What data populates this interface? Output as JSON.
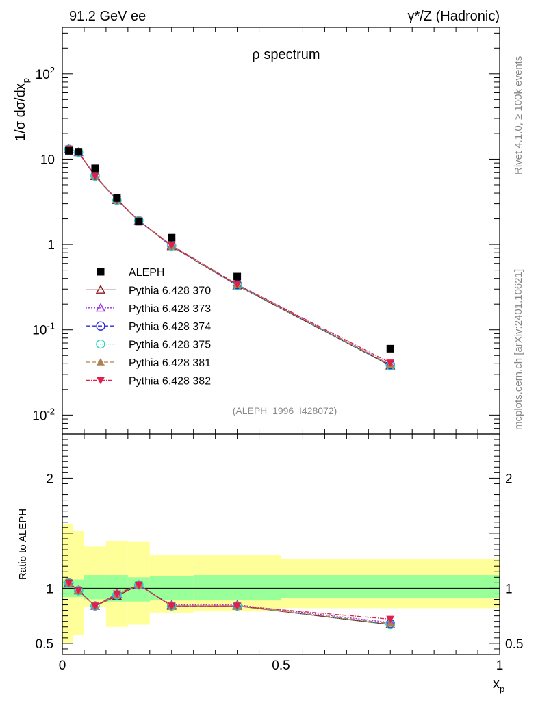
{
  "header": {
    "left": "91.2 GeV ee",
    "right": "γ*/Z (Hadronic)"
  },
  "side_text": {
    "rivet": "Rivet 4.1.0, ≥ 100k events",
    "source": "mcplots.cern.ch [arXiv:2401.10621]"
  },
  "colors": {
    "data": "#000000",
    "p370": "#8b1a1a",
    "p373": "#9a30e0",
    "p374": "#2a2ae0",
    "p375": "#22d4c0",
    "p381": "#b08050",
    "p382": "#e0204a",
    "band_inner": "#99ff99",
    "band_outer": "#ffff99"
  },
  "chart_data": {
    "type": "line",
    "title": "ρ spectrum",
    "watermark": "(ALEPH_1996_I428072)",
    "xlabel": "x",
    "xlabel_sub": "p",
    "ylabel_main": "1/σ  dσ/dx",
    "ylabel_sub": "p",
    "ratio_ylabel": "Ratio to ALEPH",
    "xlim": [
      0,
      1
    ],
    "ylim_main": [
      0.006,
      350
    ],
    "ylim_ratio": [
      0.4,
      2.4
    ],
    "x_ticks": [
      "0",
      "0.5",
      "1"
    ],
    "y_ticks_main": [
      "10^-2",
      "10^-1",
      "1",
      "10",
      "10^2"
    ],
    "y_ticks_ratio": [
      "0.5",
      "1",
      "2"
    ],
    "x": [
      0.015,
      0.037,
      0.075,
      0.125,
      0.175,
      0.25,
      0.4,
      0.75
    ],
    "bins": [
      [
        0,
        0.025
      ],
      [
        0.025,
        0.05
      ],
      [
        0.05,
        0.1
      ],
      [
        0.1,
        0.15
      ],
      [
        0.15,
        0.2
      ],
      [
        0.2,
        0.3
      ],
      [
        0.3,
        0.5
      ],
      [
        0.5,
        1.0
      ]
    ],
    "data": {
      "name": "ALEPH",
      "values": [
        12.5,
        12.2,
        7.8,
        3.5,
        1.85,
        1.2,
        0.42,
        0.06
      ]
    },
    "series": [
      {
        "name": "Pythia 6.428 370",
        "key": "p370",
        "marker": "triangle-open",
        "dash": "",
        "values": [
          13.0,
          12.0,
          6.3,
          3.3,
          1.9,
          0.95,
          0.33,
          0.038
        ],
        "ratio": [
          1.05,
          0.98,
          0.84,
          0.93,
          1.03,
          0.84,
          0.84,
          0.67
        ]
      },
      {
        "name": "Pythia 6.428 373",
        "key": "p373",
        "marker": "triangle-open",
        "dash": "2,2",
        "values": [
          13.1,
          12.0,
          6.4,
          3.35,
          1.9,
          0.97,
          0.34,
          0.039
        ],
        "ratio": [
          1.05,
          0.98,
          0.84,
          0.95,
          1.03,
          0.85,
          0.85,
          0.69
        ]
      },
      {
        "name": "Pythia 6.428 374",
        "key": "p374",
        "marker": "circle-open",
        "dash": "6,3",
        "values": [
          13.0,
          12.0,
          6.4,
          3.3,
          1.9,
          0.96,
          0.34,
          0.039
        ],
        "ratio": [
          1.05,
          0.98,
          0.84,
          0.94,
          1.03,
          0.84,
          0.84,
          0.68
        ]
      },
      {
        "name": "Pythia 6.428 375",
        "key": "p375",
        "marker": "circle-open",
        "dash": "1,2",
        "values": [
          13.0,
          12.0,
          6.3,
          3.3,
          1.9,
          0.96,
          0.33,
          0.038
        ],
        "ratio": [
          1.05,
          0.98,
          0.84,
          0.94,
          1.03,
          0.84,
          0.84,
          0.67
        ]
      },
      {
        "name": "Pythia 6.428 381",
        "key": "p381",
        "marker": "triangle-filled",
        "dash": "6,3",
        "values": [
          13.1,
          12.1,
          6.4,
          3.3,
          1.9,
          0.96,
          0.34,
          0.039
        ],
        "ratio": [
          1.05,
          0.98,
          0.84,
          0.94,
          1.03,
          0.84,
          0.84,
          0.68
        ]
      },
      {
        "name": "Pythia 6.428 382",
        "key": "p382",
        "marker": "triangle-down-filled",
        "dash": "6,2,1,2",
        "values": [
          13.2,
          12.1,
          6.4,
          3.35,
          1.9,
          0.98,
          0.34,
          0.041
        ],
        "ratio": [
          1.05,
          0.98,
          0.84,
          0.95,
          1.03,
          0.84,
          0.84,
          0.72
        ]
      }
    ],
    "band_inner": [
      [
        0.92,
        1.08
      ],
      [
        0.92,
        1.08
      ],
      [
        0.9,
        1.12
      ],
      [
        0.88,
        1.12
      ],
      [
        0.88,
        1.1
      ],
      [
        0.89,
        1.11
      ],
      [
        0.89,
        1.12
      ],
      [
        0.91,
        1.12
      ]
    ],
    "band_outer": [
      [
        0.5,
        1.58
      ],
      [
        0.58,
        1.52
      ],
      [
        0.83,
        1.38
      ],
      [
        0.65,
        1.43
      ],
      [
        0.67,
        1.42
      ],
      [
        0.78,
        1.3
      ],
      [
        0.79,
        1.3
      ],
      [
        0.82,
        1.27
      ]
    ]
  }
}
